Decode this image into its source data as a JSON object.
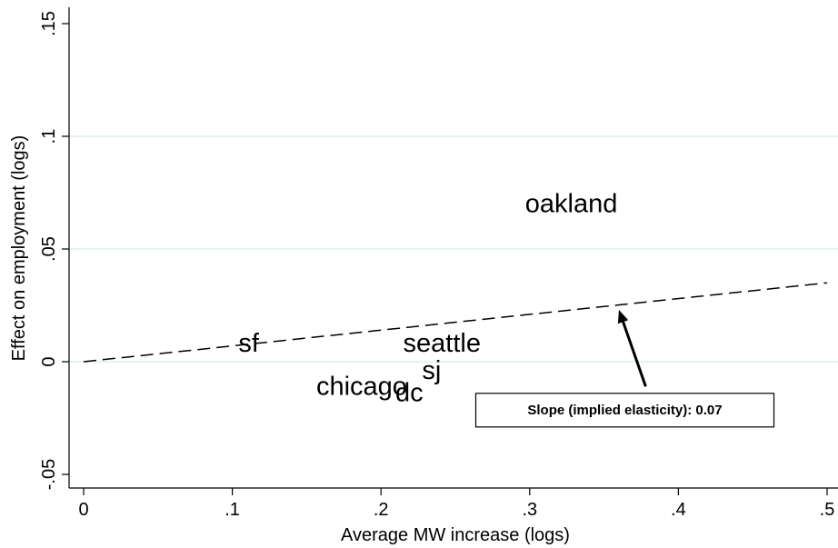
{
  "chart_data": {
    "type": "scatter",
    "xlabel": "Average MW increase (logs)",
    "ylabel": "Effect on employment (logs)",
    "xlim": [
      -0.005,
      0.5
    ],
    "ylim": [
      -0.058,
      0.153
    ],
    "x_ticks": [
      {
        "value": 0,
        "label": "0"
      },
      {
        "value": 0.1,
        "label": ".1"
      },
      {
        "value": 0.2,
        "label": ".2"
      },
      {
        "value": 0.3,
        "label": ".3"
      },
      {
        "value": 0.4,
        "label": ".4"
      },
      {
        "value": 0.5,
        "label": ".5"
      }
    ],
    "y_ticks": [
      {
        "value": -0.05,
        "label": "-.05"
      },
      {
        "value": 0,
        "label": "0"
      },
      {
        "value": 0.05,
        "label": ".05"
      },
      {
        "value": 0.1,
        "label": ".1"
      },
      {
        "value": 0.15,
        "label": ".15"
      }
    ],
    "gridlines": {
      "y": [
        0,
        0.05,
        0.1
      ],
      "color": "#dfeeee"
    },
    "points": [
      {
        "label": "oakland",
        "x": 0.328,
        "y": 0.07
      },
      {
        "label": "sf",
        "x": 0.111,
        "y": 0.008
      },
      {
        "label": "seattle",
        "x": 0.241,
        "y": 0.008
      },
      {
        "label": "sj",
        "x": 0.234,
        "y": -0.004
      },
      {
        "label": "chicago",
        "x": 0.187,
        "y": -0.011
      },
      {
        "label": "dc",
        "x": 0.219,
        "y": -0.014
      }
    ],
    "fit_line": {
      "style": "dashed",
      "x": [
        0,
        0.5
      ],
      "y": [
        0,
        0.035
      ],
      "slope": 0.07
    },
    "annotation": {
      "text": "Slope (implied elasticity): 0.07",
      "box_center": {
        "x": 0.364,
        "y": -0.0215
      },
      "arrow_from": {
        "x": 0.378,
        "y": -0.011
      },
      "arrow_to": {
        "x": 0.36,
        "y": 0.023
      }
    }
  }
}
